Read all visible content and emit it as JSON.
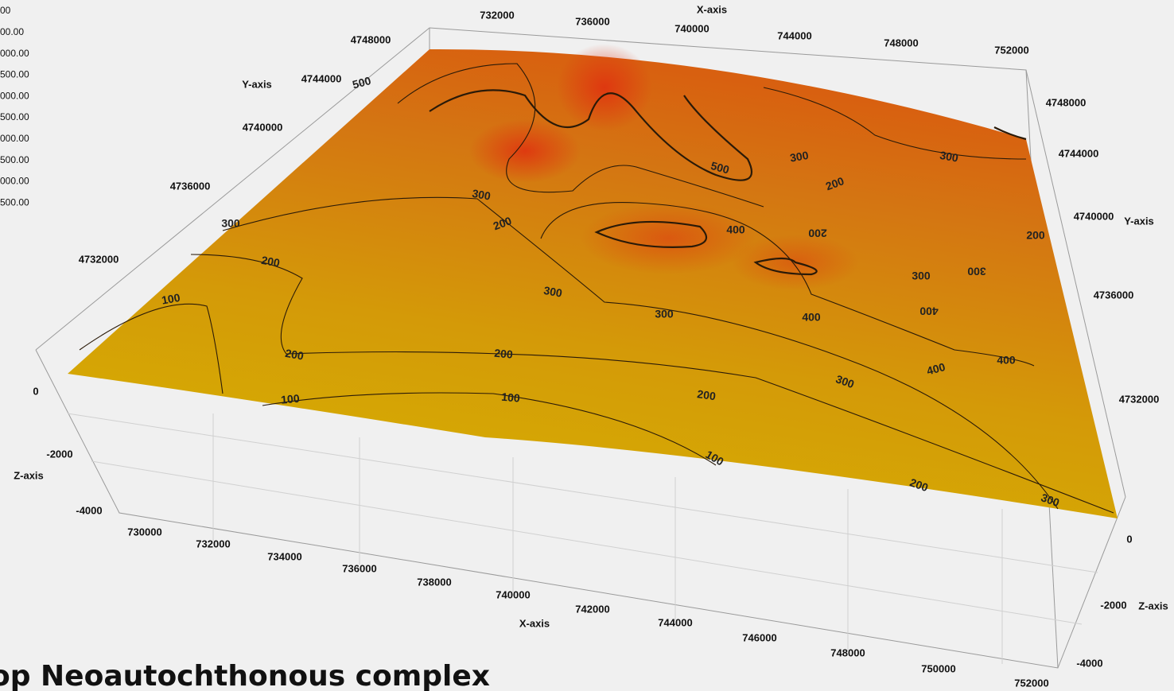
{
  "legend": {
    "labels": [
      "00",
      "00.00",
      "000.00",
      "500.00",
      "000.00",
      "500.00",
      "000.00",
      "500.00",
      "000.00",
      "500.00"
    ]
  },
  "x_axis_top": {
    "title": "X-axis",
    "ticks": [
      "732000",
      "736000",
      "740000",
      "744000",
      "748000",
      "752000"
    ]
  },
  "y_axis_left": {
    "title": "Y-axis",
    "ticks": [
      "4748000",
      "4744000",
      "4740000",
      "4736000",
      "4732000"
    ]
  },
  "z_axis_left": {
    "title": "Z-axis",
    "ticks": [
      "0",
      "-2000",
      "-4000"
    ]
  },
  "x_axis_front": {
    "title": "X-axis",
    "ticks": [
      "730000",
      "732000",
      "734000",
      "736000",
      "738000",
      "740000",
      "742000",
      "744000",
      "746000",
      "748000",
      "750000",
      "752000"
    ]
  },
  "y_axis_right": {
    "title": "Y-axis",
    "ticks": [
      "4748000",
      "4744000",
      "4740000",
      "4736000",
      "4732000"
    ]
  },
  "z_axis_right": {
    "title": "Z-axis",
    "ticks": [
      "0",
      "-2000",
      "-4000"
    ]
  },
  "contour_labels": [
    "300",
    "200",
    "100",
    "200",
    "100",
    "200",
    "100",
    "200",
    "300",
    "100",
    "200",
    "300",
    "300",
    "300",
    "300",
    "200",
    "400",
    "400",
    "400",
    "500",
    "500",
    "300",
    "300",
    "200",
    "300",
    "300",
    "200",
    "400",
    "400",
    "200"
  ],
  "title": "op Neoautochthonous complex"
}
